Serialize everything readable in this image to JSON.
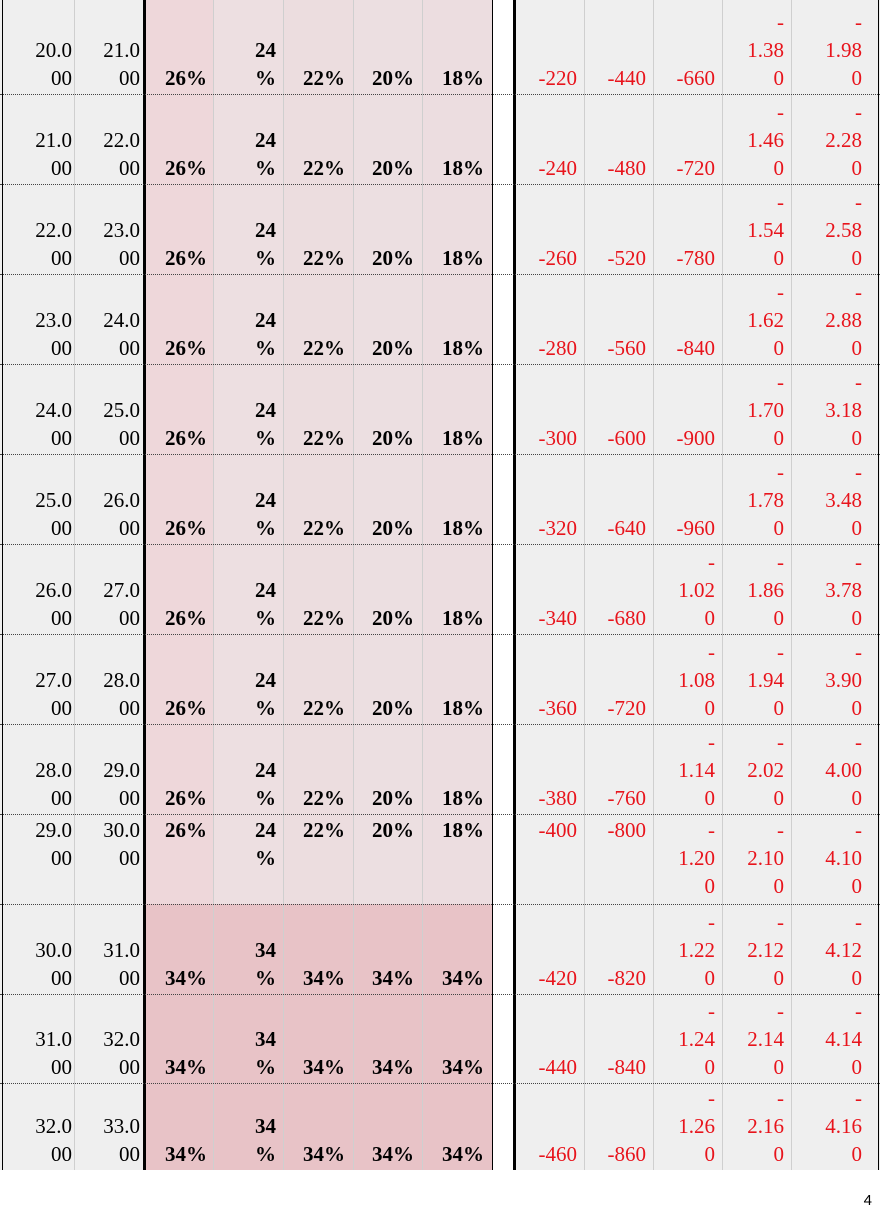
{
  "page_number": "4",
  "rows": [
    {
      "c1": "20.0\n00",
      "c2": "21.0\n00",
      "p1": "26%",
      "p2": "24\n%",
      "p3": "22%",
      "p4": "20%",
      "p5": "18%",
      "r1": "-220",
      "r2": "-440",
      "r3": "-660",
      "r4": "-\n1.38\n0",
      "r5": "-\n1.98\n0"
    },
    {
      "c1": "21.0\n00",
      "c2": "22.0\n00",
      "p1": "26%",
      "p2": "24\n%",
      "p3": "22%",
      "p4": "20%",
      "p5": "18%",
      "r1": "-240",
      "r2": "-480",
      "r3": "-720",
      "r4": "-\n1.46\n0",
      "r5": "-\n2.28\n0"
    },
    {
      "c1": "22.0\n00",
      "c2": "23.0\n00",
      "p1": "26%",
      "p2": "24\n%",
      "p3": "22%",
      "p4": "20%",
      "p5": "18%",
      "r1": "-260",
      "r2": "-520",
      "r3": "-780",
      "r4": "-\n1.54\n0",
      "r5": "-\n2.58\n0"
    },
    {
      "c1": "23.0\n00",
      "c2": "24.0\n00",
      "p1": "26%",
      "p2": "24\n%",
      "p3": "22%",
      "p4": "20%",
      "p5": "18%",
      "r1": "-280",
      "r2": "-560",
      "r3": "-840",
      "r4": "-\n1.62\n0",
      "r5": "-\n2.88\n0"
    },
    {
      "c1": "24.0\n00",
      "c2": "25.0\n00",
      "p1": "26%",
      "p2": "24\n%",
      "p3": "22%",
      "p4": "20%",
      "p5": "18%",
      "r1": "-300",
      "r2": "-600",
      "r3": "-900",
      "r4": "-\n1.70\n0",
      "r5": "-\n3.18\n0"
    },
    {
      "c1": "25.0\n00",
      "c2": "26.0\n00",
      "p1": "26%",
      "p2": "24\n%",
      "p3": "22%",
      "p4": "20%",
      "p5": "18%",
      "r1": "-320",
      "r2": "-640",
      "r3": "-960",
      "r4": "-\n1.78\n0",
      "r5": "-\n3.48\n0"
    },
    {
      "c1": "26.0\n00",
      "c2": "27.0\n00",
      "p1": "26%",
      "p2": "24\n%",
      "p3": "22%",
      "p4": "20%",
      "p5": "18%",
      "r1": "-340",
      "r2": "-680",
      "r3": "-\n1.02\n0",
      "r4": "-\n1.86\n0",
      "r5": "-\n3.78\n0"
    },
    {
      "c1": "27.0\n00",
      "c2": "28.0\n00",
      "p1": "26%",
      "p2": "24\n%",
      "p3": "22%",
      "p4": "20%",
      "p5": "18%",
      "r1": "-360",
      "r2": "-720",
      "r3": "-\n1.08\n0",
      "r4": "-\n1.94\n0",
      "r5": "-\n3.90\n0"
    },
    {
      "c1": "28.0\n00",
      "c2": "29.0\n00",
      "p1": "26%",
      "p2": "24\n%",
      "p3": "22%",
      "p4": "20%",
      "p5": "18%",
      "r1": "-380",
      "r2": "-760",
      "r3": "-\n1.14\n0",
      "r4": "-\n2.02\n0",
      "r5": "-\n4.00\n0"
    },
    {
      "c1": "29.0\n00",
      "c2": "30.0\n00",
      "p1": "26%",
      "p2": "24\n%",
      "p3": "22%",
      "p4": "20%",
      "p5": "18%",
      "r1": "-400",
      "r2": "-800",
      "r3": "-\n1.20\n0",
      "r4": "-\n2.10\n0",
      "r5": "-\n4.10\n0"
    },
    {
      "c1": "30.0\n00",
      "c2": "31.0\n00",
      "p1": "34%",
      "p2": "34\n%",
      "p3": "34%",
      "p4": "34%",
      "p5": "34%",
      "r1": "-420",
      "r2": "-820",
      "r3": "-\n1.22\n0",
      "r4": "-\n2.12\n0",
      "r5": "-\n4.12\n0"
    },
    {
      "c1": "31.0\n00",
      "c2": "32.0\n00",
      "p1": "34%",
      "p2": "34\n%",
      "p3": "34%",
      "p4": "34%",
      "p5": "34%",
      "r1": "-440",
      "r2": "-840",
      "r3": "-\n1.24\n0",
      "r4": "-\n2.14\n0",
      "r5": "-\n4.14\n0"
    },
    {
      "c1": "32.0\n00",
      "c2": "33.0\n00",
      "p1": "34%",
      "p2": "34\n%",
      "p3": "34%",
      "p4": "34%",
      "p5": "34%",
      "r1": "-460",
      "r2": "-860",
      "r3": "-\n1.26\n0",
      "r4": "-\n2.16\n0",
      "r5": "-\n4.16\n0"
    }
  ]
}
